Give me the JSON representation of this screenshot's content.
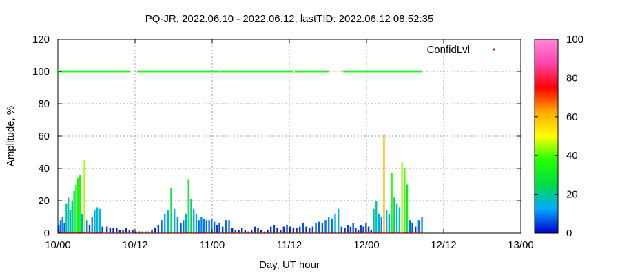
{
  "chart_data": {
    "type": "bar",
    "title": "PQ-JR, 2022.06.10 - 2022.06.12, lastTID: 2022.06.12 08:52:35",
    "xlabel": "Day, UT hour",
    "ylabel": "Amplitude, %",
    "x_range_hours": [
      0,
      72
    ],
    "ylim": [
      0,
      120
    ],
    "x_ticks": [
      {
        "hour": 0,
        "label": "10/00"
      },
      {
        "hour": 12,
        "label": "10/12"
      },
      {
        "hour": 24,
        "label": "11/00"
      },
      {
        "hour": 36,
        "label": "11/12"
      },
      {
        "hour": 48,
        "label": "12/00"
      },
      {
        "hour": 60,
        "label": "12/12"
      },
      {
        "hour": 72,
        "label": "13/00"
      }
    ],
    "y_ticks": [
      "0",
      "20",
      "40",
      "60",
      "80",
      "100",
      "120"
    ],
    "colorbar": {
      "min": 0,
      "max": 100,
      "ticks": [
        "0",
        "20",
        "40",
        "60",
        "80",
        "100"
      ],
      "stops": [
        "#0000cc",
        "#00aaff",
        "#00dd44",
        "#22ff00",
        "#ffff00",
        "#ffaa00",
        "#ff0000",
        "#ff44aa",
        "#ff88dd"
      ]
    },
    "legend": {
      "label": "ConfidLvl",
      "placement": "top-right",
      "color": "#cc0000"
    },
    "grid": true,
    "confidence_series": {
      "value": 100,
      "color": "#33ee33",
      "intervals_hours": [
        [
          0,
          11
        ],
        [
          12.5,
          25
        ],
        [
          25.5,
          36.5
        ],
        [
          37,
          42
        ],
        [
          44.5,
          56.5
        ]
      ]
    },
    "amplitude_series": {
      "x_hours": [
        0.0,
        0.3,
        0.6,
        0.9,
        1.2,
        1.5,
        1.8,
        2.1,
        2.4,
        2.7,
        3.0,
        3.3,
        3.6,
        4.0,
        4.4,
        4.8,
        5.2,
        5.6,
        6.0,
        6.4,
        6.8,
        7.5,
        8.0,
        8.5,
        9.0,
        9.5,
        10.0,
        10.5,
        11.0,
        11.5,
        12.0,
        12.5,
        13.0,
        13.5,
        14.0,
        14.5,
        15.0,
        15.5,
        16.0,
        16.5,
        17.0,
        17.5,
        18.0,
        18.5,
        19.0,
        19.4,
        19.8,
        20.2,
        20.6,
        21.0,
        21.4,
        21.8,
        22.2,
        22.6,
        23.0,
        23.4,
        23.8,
        24.2,
        24.6,
        25.0,
        25.5,
        26.0,
        26.5,
        27.0,
        27.5,
        28.0,
        28.5,
        29.0,
        29.5,
        30.0,
        30.5,
        31.0,
        31.5,
        32.0,
        32.5,
        33.0,
        33.5,
        34.0,
        34.5,
        35.0,
        35.5,
        36.0,
        36.5,
        37.0,
        37.5,
        38.0,
        38.5,
        39.0,
        39.5,
        40.0,
        40.5,
        41.0,
        41.5,
        42.0,
        42.5,
        43.0,
        43.5,
        44.0,
        44.5,
        45.0,
        45.4,
        45.8,
        46.2,
        46.6,
        47.0,
        47.4,
        47.8,
        48.2,
        48.6,
        49.0,
        49.4,
        49.8,
        50.2,
        50.6,
        51.0,
        51.4,
        51.8,
        52.2,
        52.6,
        53.0,
        53.4,
        53.8,
        54.2,
        54.6,
        55.0,
        55.5,
        56.0,
        56.5
      ],
      "y_values": [
        5,
        8,
        10,
        6,
        18,
        22,
        14,
        20,
        26,
        30,
        34,
        36,
        12,
        45,
        8,
        5,
        10,
        14,
        16,
        15,
        4,
        4,
        3,
        3,
        3,
        2,
        2,
        3,
        2,
        2,
        1,
        1,
        1,
        1,
        1,
        2,
        3,
        5,
        8,
        12,
        14,
        28,
        15,
        10,
        6,
        8,
        12,
        33,
        21,
        15,
        12,
        8,
        10,
        9,
        8,
        8,
        9,
        7,
        5,
        6,
        4,
        8,
        8,
        3,
        2,
        2,
        3,
        2,
        1,
        2,
        4,
        3,
        2,
        1,
        2,
        4,
        5,
        3,
        2,
        4,
        5,
        4,
        3,
        3,
        4,
        6,
        4,
        3,
        4,
        6,
        7,
        6,
        8,
        10,
        9,
        12,
        15,
        4,
        3,
        5,
        4,
        6,
        3,
        2,
        5,
        4,
        6,
        4,
        2,
        15,
        20,
        12,
        10,
        61,
        14,
        12,
        37,
        22,
        18,
        16,
        44,
        40,
        30,
        8,
        6,
        4,
        8,
        10
      ]
    }
  }
}
